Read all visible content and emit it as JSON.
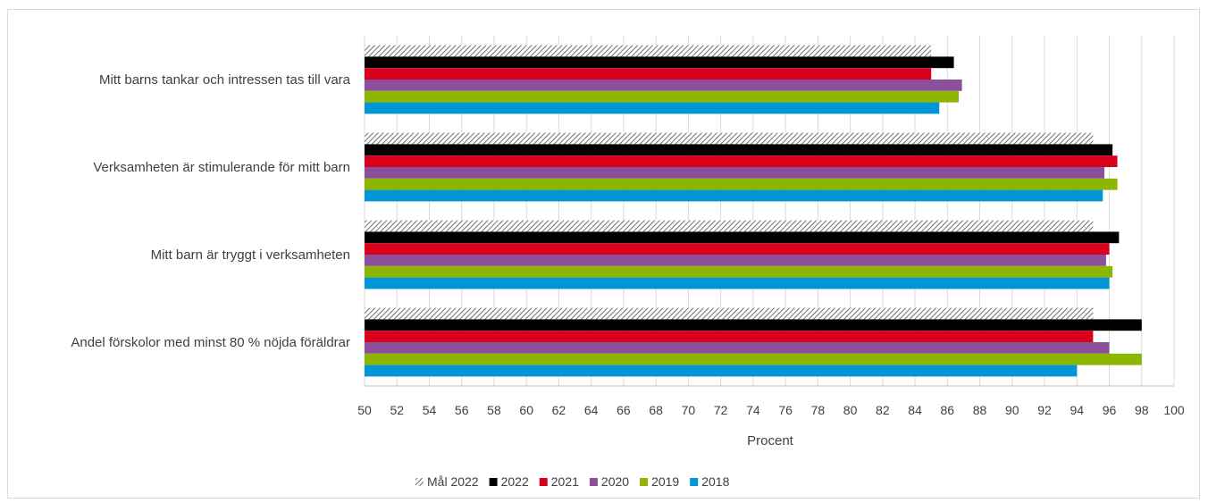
{
  "chart_data": {
    "type": "bar",
    "orientation": "horizontal",
    "xlabel": "Procent",
    "xlim": [
      50,
      100
    ],
    "xticks": [
      50,
      52,
      54,
      56,
      58,
      60,
      62,
      64,
      66,
      68,
      70,
      72,
      74,
      76,
      78,
      80,
      82,
      84,
      86,
      88,
      90,
      92,
      94,
      96,
      98,
      100
    ],
    "grid": "vertical",
    "legend_position": "bottom",
    "categories": [
      "Mitt barns tankar och intressen tas till vara",
      "Verksamheten är stimulerande för mitt barn",
      "Mitt barn är tryggt i verksamheten",
      "Andel förskolor med minst 80 % nöjda föräldrar"
    ],
    "series": [
      {
        "name": "Mål 2022",
        "color": "#808080",
        "pattern": "hatch",
        "values": [
          85,
          95,
          95,
          95
        ]
      },
      {
        "name": "2022",
        "color": "#000000",
        "values": [
          86.4,
          96.2,
          96.6,
          98
        ]
      },
      {
        "name": "2021",
        "color": "#d9001b",
        "values": [
          85,
          96.5,
          96,
          95
        ]
      },
      {
        "name": "2020",
        "color": "#8b4f9c",
        "values": [
          86.9,
          95.7,
          95.8,
          96
        ]
      },
      {
        "name": "2019",
        "color": "#8db600",
        "values": [
          86.7,
          96.5,
          96.2,
          98
        ]
      },
      {
        "name": "2018",
        "color": "#0096d6",
        "values": [
          85.5,
          95.6,
          96,
          94
        ]
      }
    ]
  }
}
